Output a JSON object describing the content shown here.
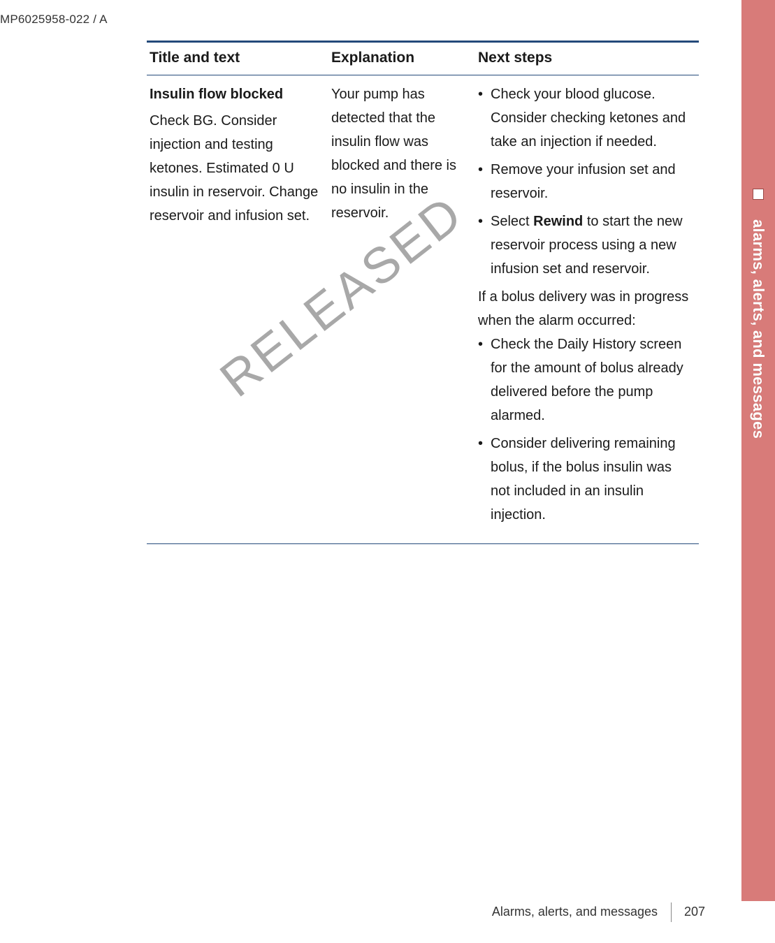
{
  "doc_id": "MP6025958-022 / A",
  "side_tab": {
    "label": "alarms, alerts, and messages",
    "bg_color": "#d87b79"
  },
  "table": {
    "headers": {
      "col1": "Title and text",
      "col2": "Explanation",
      "col3": "Next steps"
    },
    "row": {
      "title_strong": "Insulin flow blocked",
      "title_body": "Check BG. Consider injection and testing ketones. Estimated 0 U insulin in reservoir. Change reservoir and infusion set.",
      "explanation": "Your pump has detected that the insulin flow was blocked and there is no insulin in the reservoir.",
      "steps_a": [
        "Check your blood glucose. Consider checking ketones and take an injection if needed.",
        "Remove your infusion set and reservoir."
      ],
      "step_rewind_pre": "Select ",
      "step_rewind_kw": "Rewind",
      "step_rewind_post": " to start the new reservoir process using a new infusion set and reservoir.",
      "mid_text": "If a bolus delivery was in progress when the alarm occurred:",
      "steps_b": [
        "Check the Daily History screen for the amount of bolus already delivered before the pump alarmed.",
        "Consider delivering remaining bolus, if the bolus insulin was not included in an insulin injection."
      ]
    }
  },
  "watermark": "RELEASED",
  "footer": {
    "title": "Alarms, alerts, and messages",
    "page": "207"
  }
}
